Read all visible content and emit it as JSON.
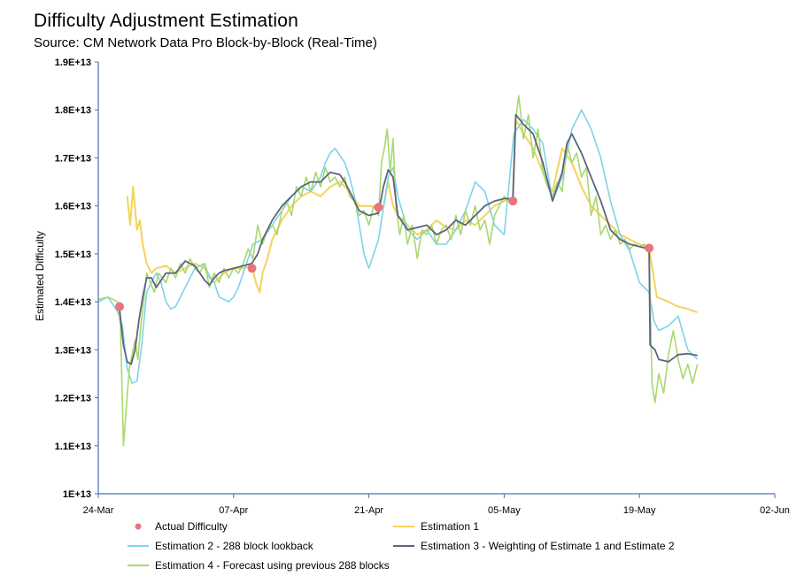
{
  "chart_data": {
    "type": "line",
    "title": "Difficulty Adjustment Estimation",
    "subtitle": "Source: CM Network Data Pro Block-by-Block (Real-Time)",
    "xlabel": "",
    "ylabel": "Estimated Difficulty",
    "x_range": [
      "24-Mar",
      "02-Jun"
    ],
    "ylim": [
      10000000000000,
      19000000000000
    ],
    "x_ticks": [
      "24-Mar",
      "07-Apr",
      "21-Apr",
      "05-May",
      "19-May",
      "02-Jun"
    ],
    "y_ticks": [
      "1E+13",
      "1.1E+13",
      "1.2E+13",
      "1.3E+13",
      "1.4E+13",
      "1.5E+13",
      "1.6E+13",
      "1.7E+13",
      "1.8E+13",
      "1.9E+13"
    ],
    "grid": false,
    "legend_position": "bottom",
    "series": [
      {
        "name": "Actual Difficulty",
        "kind": "markers",
        "color": "#e8747c",
        "x": [
          2.2,
          15.9,
          29.0,
          42.9,
          57.0
        ],
        "y": [
          13.9,
          14.7,
          15.97,
          16.1,
          15.12
        ]
      },
      {
        "name": "Estimation 1",
        "kind": "line",
        "color": "#f4d35e",
        "x": [
          3.0,
          3.3,
          3.6,
          4.0,
          4.3,
          4.6,
          5.0,
          5.5,
          6.0,
          7.0,
          8.0,
          9.0,
          10.0,
          11.0,
          12.0,
          13.0,
          14.0,
          15.0,
          15.9,
          16.3,
          16.7,
          17.0,
          17.5,
          18.0,
          19.0,
          20.0,
          21.0,
          22.0,
          23.0,
          24.0,
          25.0,
          26.0,
          27.0,
          28.0,
          29.0,
          29.5,
          30.0,
          30.5,
          31.0,
          32.0,
          33.0,
          34.0,
          35.0,
          36.0,
          37.0,
          38.0,
          39.0,
          40.0,
          41.0,
          42.0,
          42.9,
          43.2,
          44.0,
          45.0,
          46.0,
          47.0,
          48.0,
          49.0,
          50.0,
          51.0,
          52.0,
          53.0,
          54.0,
          55.0,
          56.0,
          57.0,
          57.8,
          59.0,
          60.0,
          61.0,
          62.0
        ],
        "y": [
          16.2,
          15.6,
          16.4,
          15.5,
          15.7,
          15.2,
          14.8,
          14.6,
          14.7,
          14.75,
          14.6,
          14.7,
          14.8,
          14.7,
          14.4,
          14.6,
          14.7,
          14.7,
          14.75,
          14.4,
          14.2,
          14.6,
          14.9,
          15.3,
          15.7,
          16.0,
          16.2,
          16.3,
          16.2,
          16.4,
          16.5,
          16.3,
          16.0,
          16.0,
          15.95,
          15.97,
          16.5,
          16.0,
          15.8,
          15.6,
          15.4,
          15.5,
          15.7,
          15.55,
          15.5,
          15.7,
          15.6,
          15.8,
          16.0,
          16.1,
          16.15,
          17.8,
          17.5,
          17.2,
          16.7,
          16.3,
          17.2,
          16.9,
          16.4,
          16.0,
          15.8,
          15.6,
          15.4,
          15.3,
          15.2,
          15.12,
          14.1,
          14.0,
          13.9,
          13.85,
          13.78
        ]
      },
      {
        "name": "Estimation 2 - 288 block lookback",
        "kind": "line",
        "color": "#7fd3ea",
        "x": [
          0.0,
          1.0,
          2.0,
          2.5,
          3.0,
          3.5,
          4.0,
          4.5,
          5.0,
          5.5,
          6.0,
          6.5,
          7.0,
          7.5,
          8.0,
          9.0,
          10.0,
          11.0,
          11.5,
          12.0,
          12.5,
          13.0,
          13.5,
          14.0,
          14.5,
          15.0,
          15.5,
          16.0,
          17.0,
          18.0,
          19.0,
          20.0,
          21.0,
          22.0,
          23.0,
          23.5,
          24.0,
          24.5,
          25.0,
          25.5,
          26.0,
          26.5,
          27.0,
          27.5,
          28.0,
          29.0,
          30.0,
          30.5,
          31.0,
          32.0,
          33.0,
          34.0,
          35.0,
          36.0,
          37.0,
          38.0,
          39.0,
          40.0,
          41.0,
          42.0,
          43.0,
          44.0,
          45.0,
          46.0,
          47.0,
          48.0,
          49.0,
          50.0,
          51.0,
          52.0,
          53.0,
          54.0,
          55.0,
          56.0,
          57.0,
          57.5,
          58.0,
          59.0,
          60.0,
          61.0,
          62.0
        ],
        "y": [
          14.0,
          14.1,
          13.8,
          13.5,
          12.6,
          12.3,
          12.35,
          13.1,
          14.2,
          14.4,
          14.6,
          14.4,
          14.0,
          13.85,
          13.9,
          14.3,
          14.7,
          14.8,
          14.5,
          14.4,
          14.1,
          14.05,
          14.0,
          14.1,
          14.3,
          14.6,
          14.9,
          15.2,
          15.3,
          15.6,
          15.9,
          16.2,
          16.4,
          16.3,
          16.6,
          16.9,
          17.1,
          17.2,
          17.05,
          16.9,
          16.6,
          16.2,
          15.6,
          15.0,
          14.7,
          15.3,
          16.6,
          16.8,
          16.2,
          15.5,
          15.3,
          15.5,
          15.2,
          15.2,
          15.5,
          15.9,
          16.5,
          16.3,
          15.6,
          15.4,
          17.5,
          17.8,
          17.6,
          17.3,
          16.1,
          16.6,
          17.6,
          18.0,
          17.6,
          17.0,
          16.1,
          15.4,
          15.05,
          14.4,
          14.2,
          13.6,
          13.4,
          13.5,
          13.7,
          13.0,
          12.8
        ]
      },
      {
        "name": "Estimation 3 - Weighting of Estimate 1 and Estimate 2",
        "kind": "line",
        "color": "#5b6480",
        "x": [
          2.2,
          2.6,
          3.0,
          3.4,
          3.8,
          4.2,
          4.6,
          5.0,
          5.5,
          6.0,
          6.5,
          7.0,
          8.0,
          9.0,
          10.0,
          11.0,
          11.5,
          12.0,
          12.5,
          13.0,
          14.0,
          15.0,
          15.9,
          16.5,
          17.0,
          18.0,
          19.0,
          20.0,
          21.0,
          22.0,
          23.0,
          24.0,
          25.0,
          25.5,
          26.0,
          27.0,
          28.0,
          29.0,
          29.5,
          30.0,
          30.5,
          31.0,
          32.0,
          33.0,
          34.0,
          35.0,
          36.0,
          37.0,
          38.0,
          39.0,
          40.0,
          41.0,
          42.0,
          42.9,
          43.2,
          44.0,
          45.0,
          46.0,
          47.0,
          48.0,
          48.5,
          49.0,
          50.0,
          51.0,
          52.0,
          53.0,
          54.0,
          55.0,
          56.0,
          57.0,
          57.1,
          57.6,
          58.0,
          59.0,
          60.0,
          61.0,
          62.0
        ],
        "y": [
          13.85,
          13.1,
          12.75,
          12.7,
          13.0,
          13.6,
          14.1,
          14.5,
          14.5,
          14.3,
          14.45,
          14.6,
          14.6,
          14.85,
          14.75,
          14.45,
          14.35,
          14.5,
          14.6,
          14.65,
          14.7,
          14.75,
          14.8,
          15.0,
          15.3,
          15.7,
          16.0,
          16.2,
          16.4,
          16.5,
          16.5,
          16.7,
          16.65,
          16.5,
          16.3,
          15.9,
          15.8,
          15.85,
          16.4,
          16.75,
          16.6,
          15.8,
          15.5,
          15.55,
          15.6,
          15.4,
          15.5,
          15.7,
          15.6,
          15.8,
          16.0,
          16.1,
          16.15,
          16.15,
          17.9,
          17.7,
          17.5,
          16.9,
          16.1,
          16.7,
          17.3,
          17.5,
          17.1,
          16.6,
          16.1,
          15.5,
          15.3,
          15.2,
          15.15,
          15.1,
          13.1,
          13.0,
          12.8,
          12.75,
          12.9,
          12.92,
          12.88
        ]
      },
      {
        "name": "Estimation 4 - Forecast using previous 288 blocks",
        "kind": "line",
        "color": "#a9d86e",
        "x": [
          0.0,
          1.0,
          2.0,
          2.3,
          2.6,
          2.9,
          3.2,
          3.5,
          3.8,
          4.1,
          4.4,
          4.7,
          5.0,
          5.4,
          5.8,
          6.2,
          6.6,
          7.0,
          7.5,
          8.0,
          8.5,
          9.0,
          9.5,
          10.0,
          10.5,
          11.0,
          11.5,
          12.0,
          12.5,
          13.0,
          13.5,
          14.0,
          14.5,
          15.0,
          15.5,
          16.0,
          16.5,
          17.0,
          17.5,
          18.0,
          18.5,
          19.0,
          19.5,
          20.0,
          20.5,
          21.0,
          21.5,
          22.0,
          22.5,
          23.0,
          23.5,
          24.0,
          24.5,
          25.0,
          25.5,
          26.0,
          26.5,
          27.0,
          27.5,
          28.0,
          28.5,
          29.0,
          29.3,
          29.6,
          29.9,
          30.2,
          30.5,
          30.8,
          31.2,
          31.6,
          32.0,
          32.5,
          33.0,
          33.5,
          34.0,
          34.5,
          35.0,
          35.5,
          36.0,
          36.5,
          37.0,
          37.5,
          38.0,
          38.5,
          39.0,
          39.5,
          40.0,
          40.5,
          41.0,
          41.5,
          42.0,
          42.5,
          42.9,
          43.2,
          43.5,
          44.0,
          44.5,
          45.0,
          45.5,
          46.0,
          46.5,
          47.0,
          47.5,
          48.0,
          48.5,
          49.0,
          49.5,
          50.0,
          50.5,
          51.0,
          51.5,
          52.0,
          52.5,
          53.0,
          53.5,
          54.0,
          54.5,
          55.0,
          55.5,
          56.0,
          56.5,
          57.0,
          57.3,
          57.6,
          58.0,
          58.5,
          59.0,
          59.5,
          60.0,
          60.5,
          61.0,
          61.5,
          62.0
        ],
        "y": [
          14.05,
          14.1,
          14.0,
          13.5,
          11.0,
          11.8,
          12.6,
          12.9,
          13.2,
          12.8,
          13.5,
          14.0,
          14.6,
          14.4,
          14.2,
          14.6,
          14.5,
          14.4,
          14.7,
          14.5,
          14.8,
          14.6,
          14.9,
          14.7,
          14.6,
          14.8,
          14.3,
          14.6,
          14.4,
          14.7,
          14.5,
          14.7,
          14.6,
          14.8,
          15.1,
          14.9,
          15.6,
          15.2,
          15.5,
          15.6,
          15.4,
          15.9,
          16.1,
          15.8,
          16.4,
          16.2,
          16.6,
          16.3,
          16.7,
          16.4,
          16.8,
          16.5,
          16.6,
          16.4,
          16.6,
          16.2,
          16.1,
          15.8,
          15.9,
          15.6,
          16.0,
          15.8,
          16.9,
          17.2,
          17.6,
          16.7,
          17.4,
          16.0,
          15.4,
          15.8,
          15.2,
          15.6,
          14.9,
          15.5,
          15.4,
          15.6,
          15.2,
          15.5,
          15.6,
          15.3,
          15.8,
          15.4,
          15.9,
          15.6,
          16.0,
          15.5,
          15.7,
          15.2,
          15.8,
          16.0,
          16.2,
          16.1,
          16.15,
          17.8,
          18.3,
          17.4,
          17.9,
          17.0,
          17.6,
          16.7,
          16.4,
          16.2,
          16.5,
          16.3,
          17.3,
          16.9,
          17.1,
          16.6,
          16.8,
          15.8,
          16.2,
          15.4,
          15.6,
          15.3,
          15.5,
          15.2,
          15.3,
          15.1,
          15.2,
          15.15,
          15.2,
          15.1,
          12.3,
          11.9,
          12.5,
          12.1,
          12.9,
          13.4,
          12.8,
          12.4,
          12.7,
          12.3,
          12.7
        ]
      }
    ]
  }
}
